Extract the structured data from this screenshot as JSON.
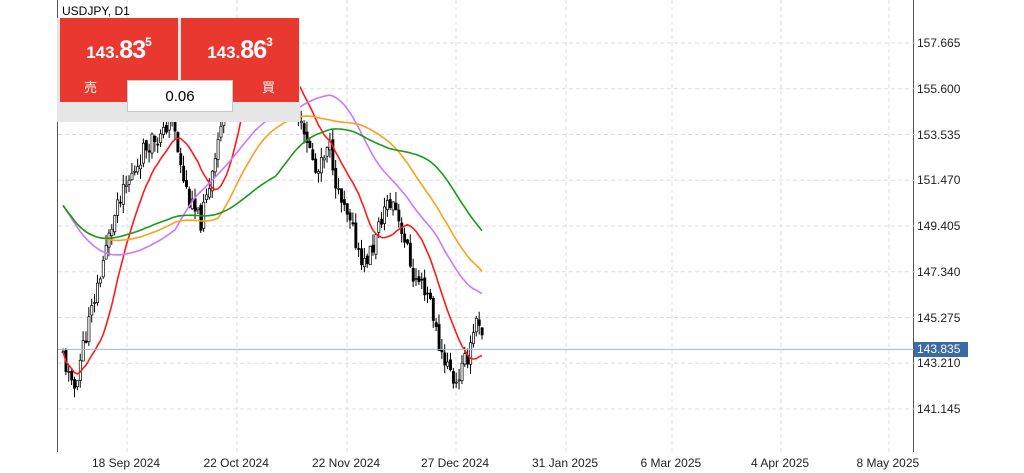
{
  "chart": {
    "symbol": "USDJPY, D1",
    "current_price": "143.835",
    "price_axis": [
      "157.665",
      "155.600",
      "153.535",
      "151.470",
      "149.405",
      "147.340",
      "145.275",
      "143.210",
      "141.145"
    ],
    "time_axis": [
      "18 Sep 2024",
      "22 Oct 2024",
      "22 Nov 2024",
      "27 Dec 2024",
      "31 Jan 2025",
      "6 Mar 2025",
      "4 Apr 2025",
      "8 May 2025"
    ],
    "colors": {
      "bull_candle": "#000000",
      "bear_candle": "#000000",
      "ma_fast": "#ff1a1a",
      "ma_mid": "#ff9f1a",
      "ma_slow": "#1a9a1a",
      "ma_purple": "#cc77ff",
      "grid": "#dddddd",
      "current_price_line": "#9db8d9",
      "current_price_tag": "#3c6aa6",
      "panel_red": "#e8382f"
    }
  },
  "trade_panel": {
    "sell": {
      "price_prefix": "143.",
      "price_big": "83",
      "price_sup": "5",
      "label": "売"
    },
    "buy": {
      "price_prefix": "143.",
      "price_big": "86",
      "price_sup": "3",
      "label": "買"
    },
    "lot_value": "0.06"
  }
}
